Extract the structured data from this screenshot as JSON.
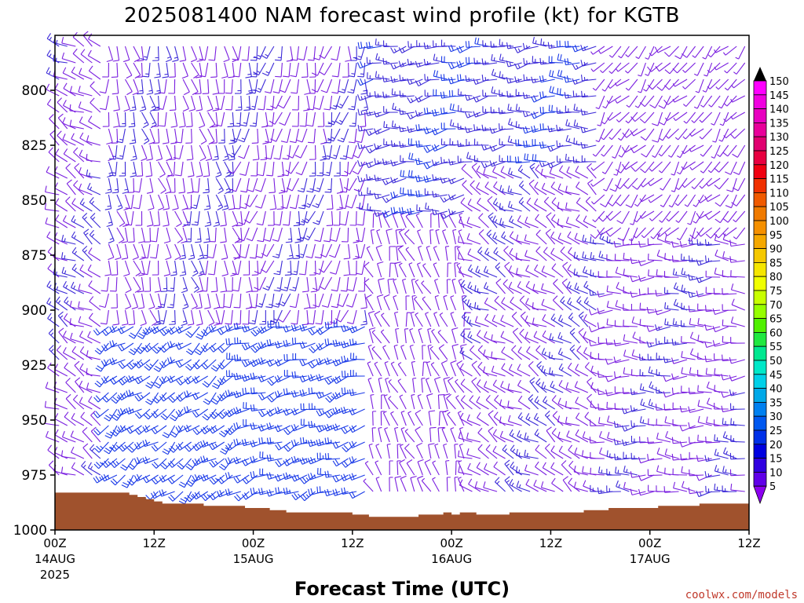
{
  "chart_data": {
    "type": "wind-barb",
    "title": "2025081400 NAM forecast wind profile (kt) for KGTB",
    "xlabel": "Forecast Time (UTC)",
    "ylabel": "",
    "y_axis": {
      "ticks": [
        800,
        825,
        850,
        875,
        900,
        925,
        950,
        975,
        1000
      ],
      "range": [
        775,
        1000
      ],
      "inverted": true
    },
    "x_axis": {
      "range_hours": [
        0,
        84
      ],
      "ticks": [
        {
          "hour": 0,
          "label": "00Z",
          "sub1": "14AUG",
          "sub2": "2025"
        },
        {
          "hour": 12,
          "label": "12Z",
          "sub1": "",
          "sub2": ""
        },
        {
          "hour": 24,
          "label": "00Z",
          "sub1": "15AUG",
          "sub2": ""
        },
        {
          "hour": 36,
          "label": "12Z",
          "sub1": "",
          "sub2": ""
        },
        {
          "hour": 48,
          "label": "00Z",
          "sub1": "16AUG",
          "sub2": ""
        },
        {
          "hour": 60,
          "label": "12Z",
          "sub1": "",
          "sub2": ""
        },
        {
          "hour": 72,
          "label": "00Z",
          "sub1": "17AUG",
          "sub2": ""
        },
        {
          "hour": 84,
          "label": "12Z",
          "sub1": "",
          "sub2": ""
        }
      ]
    },
    "colorbar": {
      "labels": [
        "150",
        "145",
        "140",
        "135",
        "130",
        "125",
        "120",
        "115",
        "110",
        "105",
        "100",
        "95",
        "90",
        "85",
        "80",
        "75",
        "70",
        "65",
        "60",
        "55",
        "50",
        "45",
        "40",
        "35",
        "30",
        "25",
        "20",
        "15",
        "10",
        "5"
      ],
      "colors": [
        "#ff00ff",
        "#f000e0",
        "#e800c0",
        "#e8009a",
        "#e00070",
        "#e80040",
        "#f00010",
        "#f03000",
        "#f05a00",
        "#f07a00",
        "#f59000",
        "#f5a800",
        "#f5c800",
        "#f5e600",
        "#f0ff00",
        "#c8ff00",
        "#96ff00",
        "#50f000",
        "#20e840",
        "#00e890",
        "#00e8c8",
        "#00d0e8",
        "#00a8e8",
        "#0080f0",
        "#0058f0",
        "#0030e8",
        "#0000e0",
        "#3000e0",
        "#6000e8",
        "#8c00f0"
      ]
    },
    "terrain_color": "#a0522d",
    "barb_colors": {
      "calm": "#7a1fe0",
      "light": "#3c2ad8",
      "moderate": "#1a3ae8"
    },
    "surface_pressure": [
      [
        0,
        983
      ],
      [
        8,
        983
      ],
      [
        9,
        984
      ],
      [
        10,
        985
      ],
      [
        11,
        986
      ],
      [
        12,
        987
      ],
      [
        13,
        988
      ],
      [
        17,
        988
      ],
      [
        18,
        989
      ],
      [
        21,
        989
      ],
      [
        23,
        990
      ],
      [
        26,
        991
      ],
      [
        28,
        992
      ],
      [
        36,
        993
      ],
      [
        38,
        994
      ],
      [
        42,
        994
      ],
      [
        44,
        993
      ],
      [
        46,
        993
      ],
      [
        47,
        992
      ],
      [
        48,
        993
      ],
      [
        49,
        992
      ],
      [
        51,
        993
      ],
      [
        53,
        993
      ],
      [
        55,
        992
      ],
      [
        58,
        992
      ],
      [
        62,
        992
      ],
      [
        64,
        991
      ],
      [
        67,
        990
      ],
      [
        71,
        990
      ],
      [
        73,
        989
      ],
      [
        77,
        989
      ],
      [
        78,
        988
      ],
      [
        84,
        988
      ]
    ],
    "regimes": [
      {
        "t0": 0,
        "t1": 6,
        "p0": 770,
        "p1": 1000,
        "dir": 300,
        "spd": 10
      },
      {
        "t0": 6,
        "t1": 22,
        "p0": 770,
        "p1": 905,
        "dir": 170,
        "spd": 10
      },
      {
        "t0": 6,
        "t1": 22,
        "p0": 905,
        "p1": 1000,
        "dir": 230,
        "spd": 20
      },
      {
        "t0": 22,
        "t1": 38,
        "p0": 770,
        "p1": 905,
        "dir": 190,
        "spd": 10
      },
      {
        "t0": 22,
        "t1": 38,
        "p0": 905,
        "p1": 1000,
        "dir": 250,
        "spd": 20
      },
      {
        "t0": 38,
        "t1": 50,
        "p0": 770,
        "p1": 860,
        "dir": 260,
        "spd": 15
      },
      {
        "t0": 38,
        "t1": 50,
        "p0": 860,
        "p1": 1000,
        "dir": 340,
        "spd": 5
      },
      {
        "t0": 50,
        "t1": 66,
        "p0": 770,
        "p1": 840,
        "dir": 265,
        "spd": 15
      },
      {
        "t0": 50,
        "t1": 66,
        "p0": 840,
        "p1": 1000,
        "dir": 300,
        "spd": 10
      },
      {
        "t0": 66,
        "t1": 84,
        "p0": 770,
        "p1": 870,
        "dir": 220,
        "spd": 5
      },
      {
        "t0": 66,
        "t1": 84,
        "p0": 870,
        "p1": 1000,
        "dir": 270,
        "spd": 10
      }
    ]
  },
  "credit": "coolwx.com/models"
}
